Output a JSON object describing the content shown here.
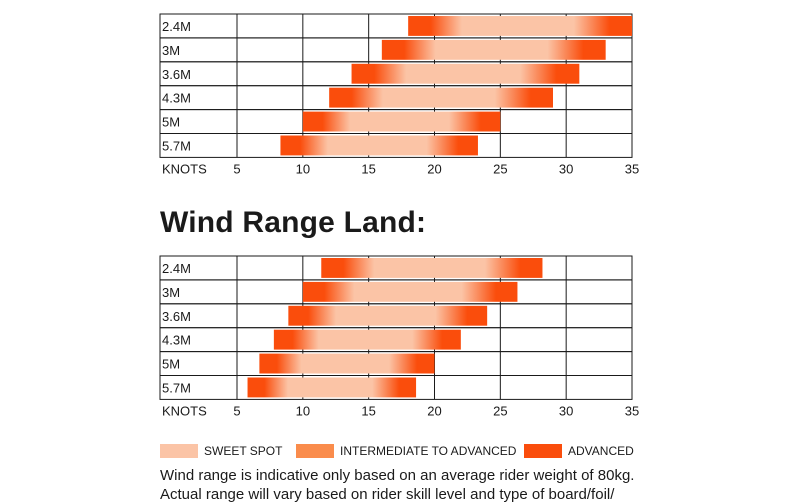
{
  "heading": "Wind Range Land:",
  "legend": [
    {
      "label": "SWEET SPOT",
      "color": "#fbc4a6"
    },
    {
      "label": "INTERMEDIATE TO ADVANCED",
      "color": "#fa8c4c"
    },
    {
      "label": "ADVANCED",
      "color": "#fa4d0c"
    }
  ],
  "note": {
    "line1": "Wind range is indicative only based on an average rider weight of 80kg.",
    "line2": "Actual range will vary based on rider skill level and type of board/foil/"
  },
  "colors": {
    "sweet": "#fbc4a6",
    "intermediate": "#fa8c4c",
    "advanced": "#fa4d0c",
    "grid": "#1a1a1a"
  },
  "chart_data": [
    {
      "type": "bar",
      "orientation": "horizontal-range",
      "title": "",
      "xlabel": "KNOTS",
      "xlim": [
        0,
        35
      ],
      "xticks": [
        5,
        10,
        15,
        20,
        25,
        30,
        35
      ],
      "categories": [
        "2.4M",
        "3M",
        "3.6M",
        "4.3M",
        "5M",
        "5.7M"
      ],
      "ranges": [
        [
          18,
          35
        ],
        [
          16,
          33
        ],
        [
          13.7,
          31
        ],
        [
          12,
          29
        ],
        [
          10,
          25
        ],
        [
          8.3,
          23.3
        ]
      ]
    },
    {
      "type": "bar",
      "orientation": "horizontal-range",
      "title": "Wind Range Land:",
      "xlabel": "KNOTS",
      "xlim": [
        0,
        35
      ],
      "xticks": [
        5,
        10,
        15,
        20,
        25,
        30,
        35
      ],
      "categories": [
        "2.4M",
        "3M",
        "3.6M",
        "4.3M",
        "5M",
        "5.7M"
      ],
      "ranges": [
        [
          11.4,
          28.2
        ],
        [
          10,
          26.3
        ],
        [
          8.9,
          24
        ],
        [
          7.8,
          22
        ],
        [
          6.7,
          20
        ],
        [
          5.8,
          18.6
        ]
      ]
    }
  ]
}
